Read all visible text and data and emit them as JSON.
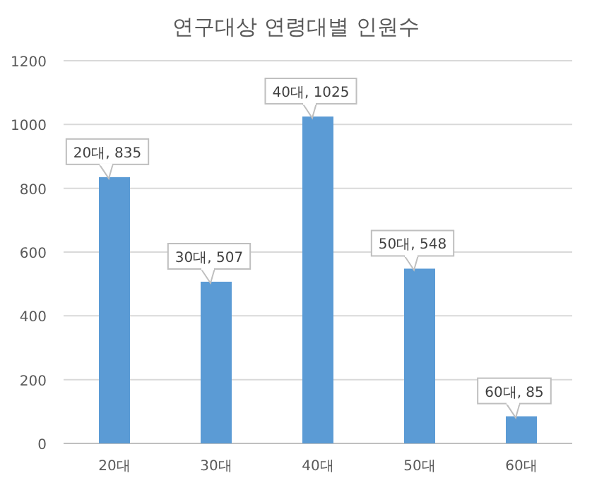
{
  "chart_data": {
    "type": "bar",
    "title": "연구대상 연령대별 인원수",
    "categories": [
      "20대",
      "30대",
      "40대",
      "50대",
      "60대"
    ],
    "values": [
      835,
      507,
      1025,
      548,
      85
    ],
    "value_labels": [
      "20대, 835",
      "30대, 507",
      "40대, 1025",
      "50대, 548",
      "60대, 85"
    ],
    "color": "#5b9bd5",
    "ylim": [
      0,
      1200
    ],
    "yticks": [
      0,
      200,
      400,
      600,
      800,
      1000,
      1200
    ],
    "grid": "y"
  }
}
